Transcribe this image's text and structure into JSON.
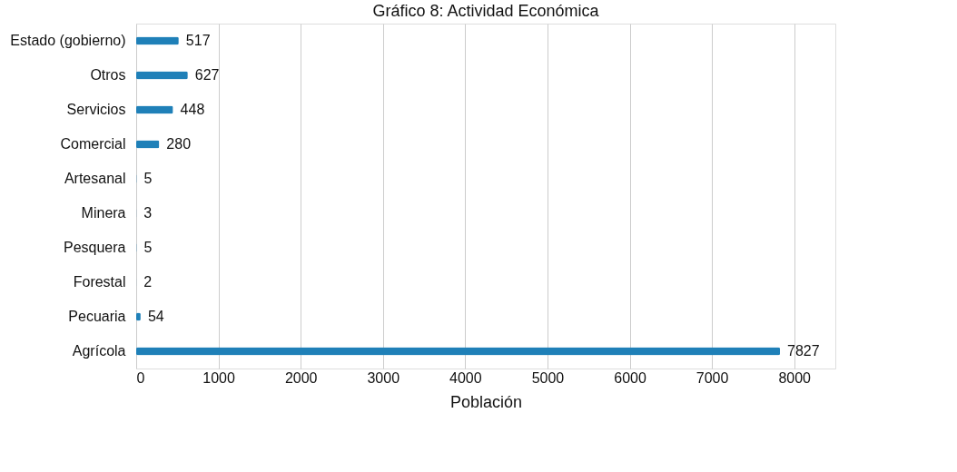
{
  "chart_data": {
    "type": "bar",
    "orientation": "horizontal",
    "title": "Gráfico 8: Actividad Económica",
    "categories": [
      "Estado (gobierno)",
      "Otros",
      "Servicios",
      "Comercial",
      "Artesanal",
      "Minera",
      "Pesquera",
      "Forestal",
      "Pecuaria",
      "Agrícola"
    ],
    "values": [
      517,
      627,
      448,
      280,
      5,
      3,
      5,
      2,
      54,
      7827
    ],
    "color": "#1f80b8",
    "data_labels": true,
    "xlabel": "Población",
    "xlim": [
      0,
      8500
    ],
    "xticks": [
      0,
      1000,
      2000,
      3000,
      4000,
      5000,
      6000,
      7000,
      8000
    ],
    "grid": "x"
  }
}
